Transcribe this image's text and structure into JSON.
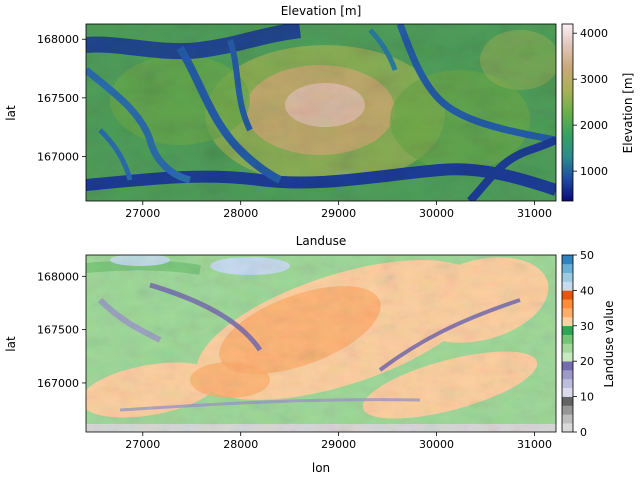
{
  "chart_data": [
    {
      "type": "heatmap",
      "title": "Elevation [m]",
      "xlabel": "",
      "ylabel": "lat",
      "xlim": [
        26420,
        31220
      ],
      "ylim": [
        166620,
        168130
      ],
      "xticks": [
        27000,
        28000,
        29000,
        30000,
        31000
      ],
      "xtick_labels": [
        "27000",
        "28000",
        "29000",
        "30000",
        "31000"
      ],
      "yticks": [
        167000,
        167500,
        168000
      ],
      "ytick_labels": [
        "167000",
        "167500",
        "168000"
      ],
      "colorbar": {
        "label": "Elevation [m]",
        "range": [
          350,
          4200
        ],
        "ticks": [
          1000,
          2000,
          3000,
          4000
        ],
        "tick_labels": [
          "1000",
          "2000",
          "3000",
          "4000"
        ],
        "colormap": "gist_earth",
        "stops": [
          "#0a0a78",
          "#1f4ba0",
          "#2e8a8c",
          "#3aa060",
          "#6ab04a",
          "#a8b058",
          "#caa878",
          "#e0c4b8",
          "#fbeef4"
        ]
      }
    },
    {
      "type": "heatmap",
      "title": "Landuse",
      "xlabel": "lon",
      "ylabel": "lat",
      "xlim": [
        26420,
        31220
      ],
      "ylim": [
        166540,
        168200
      ],
      "xticks": [
        27000,
        28000,
        29000,
        30000,
        31000
      ],
      "xtick_labels": [
        "27000",
        "28000",
        "29000",
        "30000",
        "31000"
      ],
      "yticks": [
        167000,
        167500,
        168000
      ],
      "ytick_labels": [
        "167000",
        "167500",
        "168000"
      ],
      "colorbar": {
        "label": "Landuse value",
        "range": [
          0,
          50
        ],
        "ticks": [
          0,
          10,
          20,
          30,
          40,
          50
        ],
        "tick_labels": [
          "0",
          "10",
          "20",
          "30",
          "40",
          "50"
        ],
        "colormap": "tab20c",
        "bands": [
          "#d9d9d9",
          "#bdbdbd",
          "#969696",
          "#636363",
          "#dadaeb",
          "#bcbddc",
          "#9e9ac8",
          "#756bb1",
          "#c7e9c0",
          "#a1d99b",
          "#74c476",
          "#31a354",
          "#fdd0a2",
          "#fdae6b",
          "#fd8d3c",
          "#e6550d",
          "#c6dbef",
          "#9ecae1",
          "#6baed6",
          "#3182bd"
        ]
      }
    }
  ]
}
